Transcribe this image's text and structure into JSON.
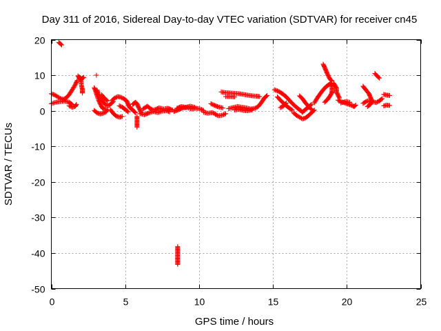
{
  "chart_data": {
    "type": "scatter",
    "title": "Day 311 of 2016, Sidereal Day-to-day VTEC variation (SDTVAR) for receiver cn45",
    "xlabel": "GPS time / hours",
    "ylabel": "SDTVAR / TECUs",
    "xlim": [
      0,
      25
    ],
    "ylim": [
      -50,
      20
    ],
    "x_ticks": [
      0,
      5,
      10,
      15,
      20,
      25
    ],
    "y_ticks": [
      -50,
      -40,
      -30,
      -20,
      -10,
      0,
      10,
      20
    ],
    "grid": true,
    "marker": "+",
    "marker_color": "#ff0000",
    "series": [
      {
        "name": "cn45",
        "segments": [
          [
            [
              0.0,
              4.8
            ],
            [
              0.2,
              4.5
            ],
            [
              0.4,
              4.0
            ],
            [
              0.6,
              3.5
            ],
            [
              0.8,
              3.2
            ],
            [
              1.0,
              3.6
            ],
            [
              1.2,
              4.5
            ],
            [
              1.4,
              5.8
            ],
            [
              1.6,
              7.2
            ],
            [
              1.75,
              8.5
            ]
          ],
          [
            [
              0.0,
              2.0
            ],
            [
              0.3,
              2.4
            ],
            [
              0.6,
              2.6
            ],
            [
              0.9,
              2.7
            ],
            [
              1.2,
              2.4
            ],
            [
              1.4,
              1.8
            ]
          ],
          [
            [
              0.5,
              19.2
            ],
            [
              0.6,
              18.9
            ],
            [
              0.7,
              18.5
            ]
          ],
          [
            [
              1.2,
              1.4
            ],
            [
              1.4,
              1.0
            ],
            [
              1.6,
              1.2
            ],
            [
              1.7,
              1.8
            ]
          ],
          [
            [
              1.8,
              9.8
            ],
            [
              1.9,
              9.2
            ],
            [
              2.0,
              8.5
            ],
            [
              2.05,
              7.0
            ],
            [
              2.1,
              6.0
            ],
            [
              2.1,
              5.0
            ]
          ],
          [
            [
              1.9,
              9.5
            ],
            [
              2.05,
              9.0
            ],
            [
              2.2,
              9.4
            ]
          ],
          [
            [
              3.05,
              10.0
            ]
          ],
          [
            [
              2.9,
              6.5
            ],
            [
              3.0,
              5.5
            ],
            [
              3.1,
              4.2
            ],
            [
              3.2,
              3.0
            ],
            [
              3.3,
              2.0
            ],
            [
              3.4,
              1.2
            ],
            [
              3.5,
              0.6
            ],
            [
              3.7,
              0.4
            ]
          ],
          [
            [
              2.9,
              0.1
            ],
            [
              3.1,
              -0.6
            ],
            [
              3.3,
              -0.9
            ],
            [
              3.5,
              -0.7
            ],
            [
              3.7,
              -0.3
            ],
            [
              3.8,
              0.3
            ]
          ],
          [
            [
              3.1,
              5.8
            ],
            [
              3.2,
              4.5
            ],
            [
              3.3,
              3.5
            ],
            [
              3.5,
              2.5
            ],
            [
              3.7,
              1.6
            ],
            [
              3.9,
              1.4
            ],
            [
              4.0,
              1.9
            ],
            [
              4.2,
              2.6
            ]
          ],
          [
            [
              3.4,
              4.5
            ],
            [
              3.6,
              3.5
            ],
            [
              3.8,
              2.8
            ]
          ],
          [
            [
              4.0,
              0.3
            ],
            [
              4.2,
              -0.8
            ],
            [
              4.4,
              -1.5
            ],
            [
              4.6,
              -1.8
            ],
            [
              4.8,
              -1.6
            ]
          ],
          [
            [
              4.1,
              2.9
            ],
            [
              4.3,
              3.6
            ],
            [
              4.5,
              4.0
            ],
            [
              4.7,
              3.8
            ],
            [
              4.9,
              3.4
            ],
            [
              5.1,
              2.8
            ],
            [
              5.2,
              1.8
            ],
            [
              5.3,
              0.9
            ],
            [
              5.5,
              0.3
            ],
            [
              5.7,
              -0.6
            ]
          ],
          [
            [
              4.6,
              1.4
            ],
            [
              4.8,
              1.0
            ],
            [
              5.0,
              0.4
            ],
            [
              5.2,
              -0.3
            ]
          ],
          [
            [
              5.5,
              1.8
            ],
            [
              5.7,
              2.4
            ],
            [
              5.8,
              2.0
            ],
            [
              5.9,
              1.0
            ],
            [
              6.0,
              0.2
            ],
            [
              6.1,
              -0.6
            ]
          ],
          [
            [
              5.8,
              -1.6
            ],
            [
              5.8,
              -2.6
            ],
            [
              5.8,
              -3.6
            ],
            [
              5.8,
              -4.6
            ]
          ],
          [
            [
              6.0,
              -0.8
            ],
            [
              6.3,
              -1.1
            ],
            [
              6.6,
              -0.6
            ],
            [
              6.9,
              -0.2
            ],
            [
              7.2,
              -0.5
            ],
            [
              7.5,
              -0.1
            ],
            [
              7.8,
              0.0
            ],
            [
              8.0,
              -0.3
            ]
          ],
          [
            [
              6.2,
              0.5
            ],
            [
              6.5,
              1.3
            ],
            [
              6.7,
              0.6
            ],
            [
              6.9,
              0.2
            ]
          ],
          [
            [
              7.0,
              0.3
            ],
            [
              7.3,
              0.8
            ],
            [
              7.6,
              0.5
            ],
            [
              7.9,
              0.7
            ],
            [
              8.2,
              0.2
            ]
          ],
          [
            [
              8.55,
              -38.2
            ],
            [
              8.55,
              -39.2
            ],
            [
              8.55,
              -40.2
            ],
            [
              8.55,
              -41.2
            ],
            [
              8.55,
              -42.2
            ],
            [
              8.55,
              -43.2
            ]
          ],
          [
            [
              8.3,
              -0.2
            ],
            [
              8.6,
              0.3
            ],
            [
              8.9,
              0.8
            ],
            [
              9.2,
              0.9
            ],
            [
              9.5,
              0.5
            ],
            [
              9.8,
              0.7
            ],
            [
              10.1,
              0.5
            ],
            [
              10.3,
              0.1
            ]
          ],
          [
            [
              8.5,
              0.7
            ],
            [
              8.8,
              1.2
            ],
            [
              9.1,
              1.0
            ],
            [
              9.4,
              1.3
            ],
            [
              9.7,
              1.0
            ]
          ],
          [
            [
              10.3,
              -0.4
            ],
            [
              10.6,
              -0.7
            ],
            [
              10.9,
              -0.5
            ],
            [
              11.1,
              -0.9
            ]
          ],
          [
            [
              10.8,
              2.0
            ],
            [
              11.0,
              1.6
            ],
            [
              11.3,
              1.1
            ],
            [
              11.6,
              0.8
            ]
          ],
          [
            [
              11.1,
              -1.0
            ],
            [
              11.3,
              -1.4
            ],
            [
              11.6,
              -1.2
            ],
            [
              11.8,
              -0.8
            ]
          ],
          [
            [
              11.5,
              5.3
            ],
            [
              11.8,
              5.1
            ],
            [
              12.1,
              5.0
            ],
            [
              12.4,
              4.9
            ],
            [
              12.7,
              4.8
            ],
            [
              13.0,
              4.6
            ],
            [
              13.3,
              4.4
            ],
            [
              13.6,
              4.2
            ],
            [
              13.9,
              4.1
            ],
            [
              14.1,
              4.0
            ]
          ],
          [
            [
              11.8,
              4.0
            ],
            [
              12.1,
              4.0
            ],
            [
              12.4,
              3.9
            ]
          ],
          [
            [
              12.0,
              0.6
            ],
            [
              12.3,
              0.9
            ],
            [
              12.6,
              1.2
            ],
            [
              12.9,
              1.0
            ],
            [
              13.2,
              0.8
            ],
            [
              13.5,
              0.5
            ],
            [
              13.8,
              0.7
            ],
            [
              14.0,
              1.2
            ],
            [
              14.2,
              2.2
            ],
            [
              14.4,
              3.5
            ],
            [
              14.6,
              4.3
            ]
          ],
          [
            [
              12.4,
              0.2
            ],
            [
              12.7,
              0.4
            ],
            [
              13.0,
              0.1
            ],
            [
              13.3,
              0.0
            ],
            [
              13.6,
              0.3
            ]
          ],
          [
            [
              15.1,
              5.9
            ],
            [
              15.3,
              5.6
            ],
            [
              15.5,
              5.2
            ],
            [
              15.7,
              4.6
            ],
            [
              15.9,
              3.9
            ],
            [
              16.1,
              3.0
            ],
            [
              16.3,
              2.1
            ],
            [
              16.5,
              1.3
            ],
            [
              16.7,
              0.6
            ],
            [
              16.9,
              0.0
            ],
            [
              17.0,
              -0.5
            ]
          ],
          [
            [
              15.3,
              3.9
            ],
            [
              15.5,
              3.0
            ],
            [
              15.7,
              2.2
            ],
            [
              15.9,
              1.4
            ],
            [
              16.1,
              0.8
            ],
            [
              16.3,
              0.2
            ]
          ],
          [
            [
              15.5,
              0.9
            ],
            [
              15.7,
              1.3
            ],
            [
              15.9,
              2.2
            ]
          ],
          [
            [
              16.4,
              -0.6
            ],
            [
              16.6,
              -1.3
            ],
            [
              16.8,
              -1.8
            ],
            [
              17.0,
              -2.3
            ],
            [
              17.2,
              -2.0
            ],
            [
              17.4,
              -1.4
            ],
            [
              17.6,
              -0.6
            ],
            [
              17.8,
              0.2
            ]
          ],
          [
            [
              16.8,
              4.2
            ],
            [
              17.0,
              3.4
            ],
            [
              17.2,
              2.2
            ],
            [
              17.4,
              1.3
            ],
            [
              17.6,
              0.4
            ]
          ],
          [
            [
              17.0,
              -0.4
            ],
            [
              17.2,
              0.4
            ],
            [
              17.4,
              1.0
            ],
            [
              17.6,
              1.8
            ]
          ],
          [
            [
              17.8,
              2.2
            ],
            [
              18.0,
              3.6
            ],
            [
              18.2,
              4.8
            ],
            [
              18.4,
              5.9
            ],
            [
              18.6,
              6.8
            ],
            [
              18.8,
              7.4
            ],
            [
              18.9,
              7.7
            ],
            [
              19.0,
              7.0
            ],
            [
              19.0,
              6.0
            ],
            [
              19.0,
              5.0
            ]
          ],
          [
            [
              18.4,
              13.1
            ],
            [
              18.5,
              12.2
            ],
            [
              18.6,
              11.2
            ],
            [
              18.7,
              10.2
            ],
            [
              18.8,
              9.4
            ],
            [
              18.9,
              8.7
            ],
            [
              19.0,
              8.4
            ]
          ],
          [
            [
              18.5,
              2.4
            ],
            [
              18.7,
              3.2
            ],
            [
              18.9,
              4.4
            ],
            [
              19.0,
              5.2
            ]
          ],
          [
            [
              19.1,
              7.8
            ],
            [
              19.2,
              7.1
            ],
            [
              19.3,
              6.4
            ],
            [
              19.3,
              5.4
            ],
            [
              19.4,
              4.4
            ],
            [
              19.5,
              3.6
            ]
          ],
          [
            [
              19.4,
              3.0
            ],
            [
              19.6,
              2.6
            ],
            [
              19.8,
              2.3
            ],
            [
              20.0,
              2.0
            ],
            [
              20.2,
              1.7
            ],
            [
              20.4,
              1.4
            ],
            [
              20.5,
              1.2
            ],
            [
              20.6,
              1.6
            ]
          ],
          [
            [
              19.6,
              2.2
            ],
            [
              19.9,
              2.6
            ],
            [
              20.2,
              2.4
            ]
          ],
          [
            [
              21.1,
              6.9
            ],
            [
              21.3,
              5.8
            ],
            [
              21.5,
              4.8
            ],
            [
              21.6,
              3.8
            ],
            [
              21.7,
              2.8
            ],
            [
              21.6,
              1.8
            ],
            [
              21.4,
              1.2
            ]
          ],
          [
            [
              21.1,
              2.1
            ],
            [
              21.4,
              2.8
            ],
            [
              21.7,
              2.6
            ],
            [
              22.0,
              2.3
            ],
            [
              22.2,
              2.8
            ],
            [
              22.4,
              3.4
            ]
          ],
          [
            [
              21.9,
              10.5
            ],
            [
              22.0,
              10.0
            ],
            [
              22.1,
              9.6
            ],
            [
              22.2,
              9.2
            ]
          ],
          [
            [
              22.5,
              4.6
            ],
            [
              22.7,
              4.4
            ],
            [
              22.9,
              4.3
            ]
          ],
          [
            [
              22.5,
              1.4
            ],
            [
              22.7,
              1.6
            ],
            [
              22.9,
              1.5
            ]
          ]
        ]
      }
    ]
  }
}
